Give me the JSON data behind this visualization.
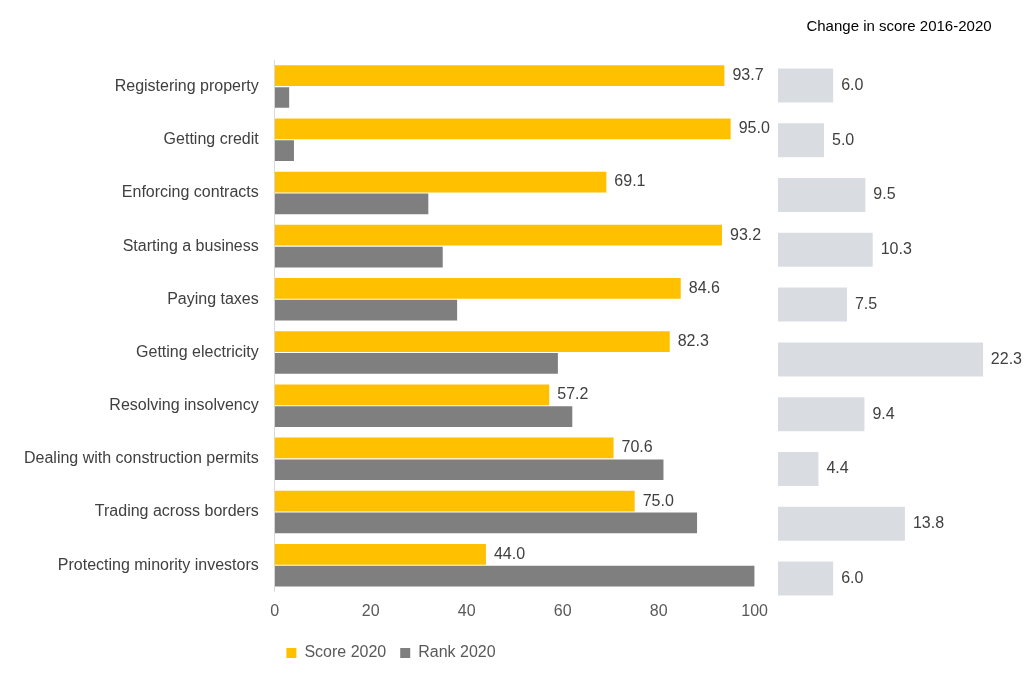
{
  "chart_data": [
    {
      "type": "bar",
      "orientation": "horizontal",
      "categories": [
        "Registering property",
        "Getting credit",
        "Enforcing contracts",
        "Starting a business",
        "Paying taxes",
        "Getting electricity",
        "Resolving insolvency",
        "Dealing with construction permits",
        "Trading across borders",
        "Protecting minority investors"
      ],
      "series": [
        {
          "name": "Score 2020",
          "color": "#ffc000",
          "values": [
            93.7,
            95.0,
            69.1,
            93.2,
            84.6,
            82.3,
            57.2,
            70.6,
            75.0,
            44.0
          ],
          "value_labels": [
            "93.7",
            "95.0",
            "69.1",
            "93.2",
            "84.6",
            "82.3",
            "57.2",
            "70.6",
            "75.0",
            "44.0"
          ]
        },
        {
          "name": "Rank 2020",
          "color": "#7f7f7f",
          "values": [
            3,
            4,
            32,
            35,
            38,
            59,
            62,
            81,
            88,
            100
          ]
        }
      ],
      "xlim": [
        0,
        100
      ],
      "xticks": [
        0,
        20,
        40,
        60,
        80,
        100
      ],
      "grid": false,
      "legend": "bottom"
    },
    {
      "type": "bar",
      "orientation": "horizontal",
      "title": "Change in score 2016-2020",
      "tick_labels": false,
      "categories": [
        null,
        null,
        null,
        null,
        null,
        null,
        null,
        null,
        null,
        null
      ],
      "series": [
        {
          "color": "#d9dde2",
          "values": [
            6.0,
            5.0,
            9.5,
            10.3,
            7.5,
            22.3,
            9.4,
            4.4,
            13.8,
            6.0
          ],
          "value_labels": [
            "6.0",
            "5.0",
            "9.5",
            "10.3",
            "7.5",
            "22.3",
            "9.4",
            "4.4",
            "13.8",
            "6.0"
          ]
        }
      ],
      "grid": false
    }
  ]
}
